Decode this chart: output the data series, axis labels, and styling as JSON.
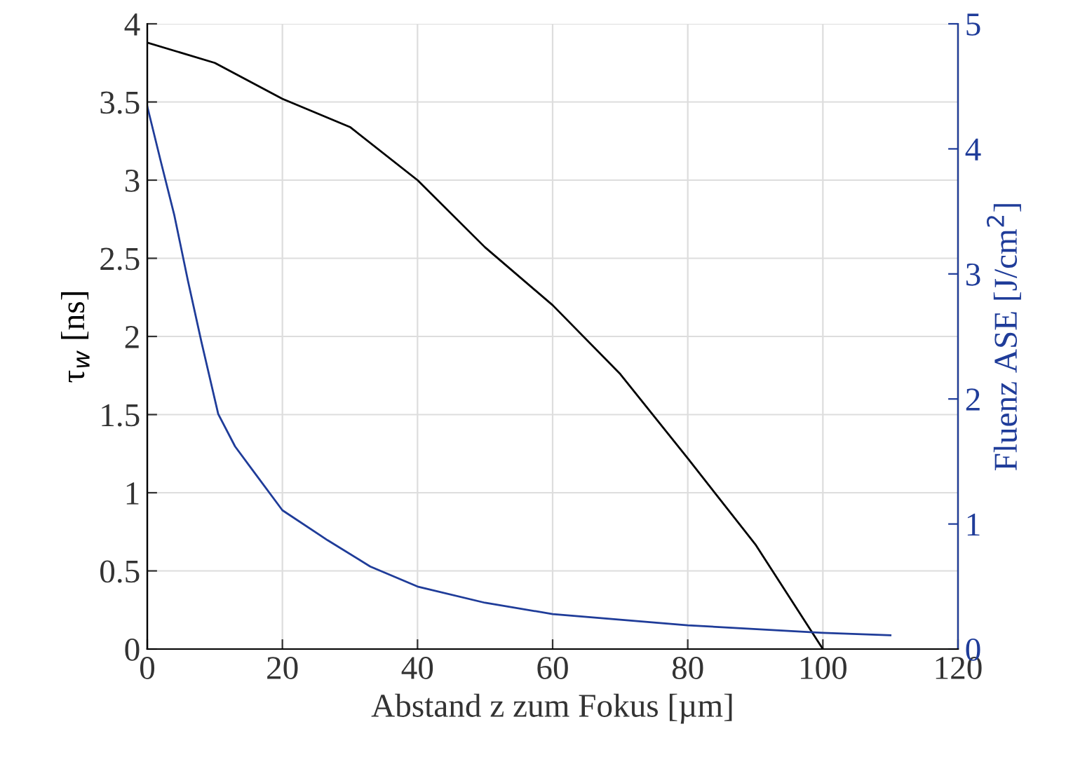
{
  "chart_data": {
    "type": "line",
    "xlabel": "Abstand z zum Fokus [µm]",
    "ylabel": "τ$_{w}$ [ns]",
    "y2label": "Fluenz ASE [J/cm$^{2}$]",
    "xlim": [
      0,
      120
    ],
    "xticks": [
      0,
      20,
      40,
      60,
      80,
      100,
      120
    ],
    "ylim": [
      0,
      4
    ],
    "yticks": [
      0,
      0.5,
      1,
      1.5,
      2,
      2.5,
      3,
      3.5,
      4
    ],
    "y2lim": [
      0,
      5
    ],
    "y2ticks": [
      0,
      1,
      2,
      3,
      4,
      5
    ],
    "grid": true,
    "series": [
      {
        "color": "#000000",
        "x": [
          0,
          10,
          20,
          30,
          40,
          50,
          60,
          70,
          80,
          90,
          100
        ],
        "values": [
          3.88,
          3.75,
          3.52,
          3.34,
          3.0,
          2.57,
          2.2,
          1.76,
          1.22,
          0.67,
          0
        ]
      },
      {
        "color": "#1f3c99",
        "axis": "y2",
        "x": [
          0,
          2,
          4,
          6,
          8,
          10.5,
          13,
          15.6,
          20,
          26.7,
          33,
          40,
          50,
          60,
          80,
          100,
          110
        ],
        "values": [
          4.34,
          3.9,
          3.47,
          2.95,
          2.46,
          1.88,
          1.62,
          1.43,
          1.11,
          0.87,
          0.66,
          0.5,
          0.37,
          0.28,
          0.19,
          0.13,
          0.11
        ]
      }
    ]
  }
}
